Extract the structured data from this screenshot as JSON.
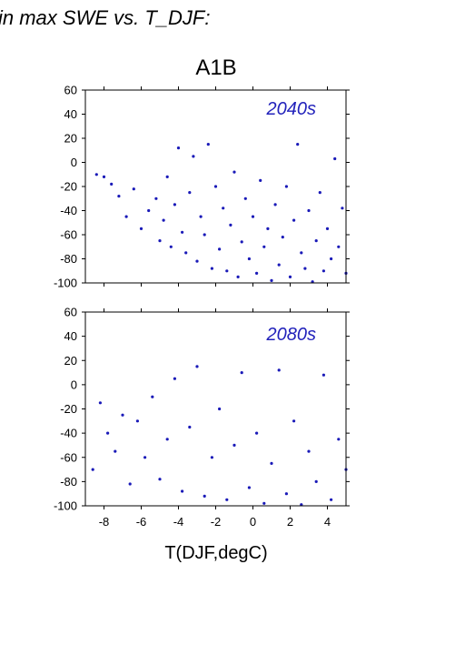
{
  "heading": "in max SWE vs. T_DJF:",
  "title": "A1B",
  "xlabel": "T(DJF,degC)",
  "colors": {
    "points": "#1a1ab8",
    "period_label": "#2222bb",
    "axes": "#000000"
  },
  "chart_data": [
    {
      "type": "scatter",
      "panel_label": "2040s",
      "xlim": [
        -9,
        5
      ],
      "ylim": [
        -100,
        60
      ],
      "xticks": [
        -8,
        -6,
        -4,
        -2,
        0,
        2,
        4
      ],
      "yticks": [
        60,
        40,
        20,
        0,
        -20,
        -40,
        -60,
        -80,
        -100
      ],
      "xtick_labels_shown": false,
      "grid": false,
      "series": [
        {
          "points": [
            [
              -8.4,
              -10
            ],
            [
              -8.0,
              -12
            ],
            [
              -7.6,
              -18
            ],
            [
              -7.2,
              -28
            ],
            [
              -6.8,
              -45
            ],
            [
              -6.4,
              -22
            ],
            [
              -6.0,
              -55
            ],
            [
              -5.6,
              -40
            ],
            [
              -5.2,
              -30
            ],
            [
              -5.0,
              -65
            ],
            [
              -4.8,
              -48
            ],
            [
              -4.6,
              -12
            ],
            [
              -4.4,
              -70
            ],
            [
              -4.2,
              -35
            ],
            [
              -4.0,
              12
            ],
            [
              -3.8,
              -58
            ],
            [
              -3.6,
              -75
            ],
            [
              -3.4,
              -25
            ],
            [
              -3.2,
              5
            ],
            [
              -3.0,
              -82
            ],
            [
              -2.8,
              -45
            ],
            [
              -2.6,
              -60
            ],
            [
              -2.4,
              15
            ],
            [
              -2.2,
              -88
            ],
            [
              -2.0,
              -20
            ],
            [
              -1.8,
              -72
            ],
            [
              -1.6,
              -38
            ],
            [
              -1.4,
              -90
            ],
            [
              -1.2,
              -52
            ],
            [
              -1.0,
              -8
            ],
            [
              -0.8,
              -95
            ],
            [
              -0.6,
              -66
            ],
            [
              -0.4,
              -30
            ],
            [
              -0.2,
              -80
            ],
            [
              0.0,
              -45
            ],
            [
              0.2,
              -92
            ],
            [
              0.4,
              -15
            ],
            [
              0.6,
              -70
            ],
            [
              0.8,
              -55
            ],
            [
              1.0,
              -98
            ],
            [
              1.2,
              -35
            ],
            [
              1.4,
              -85
            ],
            [
              1.6,
              -62
            ],
            [
              1.8,
              -20
            ],
            [
              2.0,
              -95
            ],
            [
              2.2,
              -48
            ],
            [
              2.4,
              15
            ],
            [
              2.6,
              -75
            ],
            [
              2.8,
              -88
            ],
            [
              3.0,
              -40
            ],
            [
              3.2,
              -99
            ],
            [
              3.4,
              -65
            ],
            [
              3.6,
              -25
            ],
            [
              3.8,
              -90
            ],
            [
              4.0,
              -55
            ],
            [
              4.2,
              -80
            ],
            [
              4.4,
              3
            ],
            [
              4.6,
              -70
            ],
            [
              4.8,
              -38
            ],
            [
              5.0,
              -92
            ]
          ]
        }
      ]
    },
    {
      "type": "scatter",
      "panel_label": "2080s",
      "xlim": [
        -9,
        5
      ],
      "ylim": [
        -100,
        60
      ],
      "xticks": [
        -8,
        -6,
        -4,
        -2,
        0,
        2,
        4
      ],
      "xtick_labels": [
        "-8",
        "-6",
        "-4",
        "-2",
        "0",
        "2",
        "4"
      ],
      "yticks": [
        60,
        40,
        20,
        0,
        -20,
        -40,
        -60,
        -80,
        -100
      ],
      "grid": false,
      "series": [
        {
          "points": [
            [
              -8.6,
              -70
            ],
            [
              -8.2,
              -15
            ],
            [
              -7.8,
              -40
            ],
            [
              -7.4,
              -55
            ],
            [
              -7.0,
              -25
            ],
            [
              -6.6,
              -82
            ],
            [
              -6.2,
              -30
            ],
            [
              -5.8,
              -60
            ],
            [
              -5.4,
              -10
            ],
            [
              -5.0,
              -78
            ],
            [
              -4.6,
              -45
            ],
            [
              -4.2,
              5
            ],
            [
              -3.8,
              -88
            ],
            [
              -3.4,
              -35
            ],
            [
              -3.0,
              15
            ],
            [
              -2.6,
              -92
            ],
            [
              -2.2,
              -60
            ],
            [
              -1.8,
              -20
            ],
            [
              -1.4,
              -95
            ],
            [
              -1.0,
              -50
            ],
            [
              -0.6,
              10
            ],
            [
              -0.2,
              -85
            ],
            [
              0.2,
              -40
            ],
            [
              0.6,
              -98
            ],
            [
              1.0,
              -65
            ],
            [
              1.4,
              12
            ],
            [
              1.8,
              -90
            ],
            [
              2.2,
              -30
            ],
            [
              2.6,
              -99
            ],
            [
              3.0,
              -55
            ],
            [
              3.4,
              -80
            ],
            [
              3.8,
              8
            ],
            [
              4.2,
              -95
            ],
            [
              4.6,
              -45
            ],
            [
              5.0,
              -70
            ]
          ]
        }
      ]
    }
  ]
}
